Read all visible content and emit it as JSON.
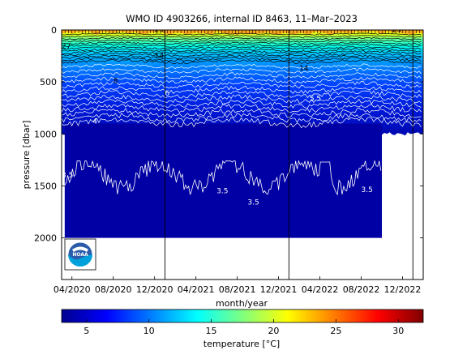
{
  "chart_data": {
    "type": "heatmap",
    "title": "WMO ID 4903266, internal ID 8463, 11–Mar–2023",
    "xlabel": "month/year",
    "ylabel": "pressure [dbar]",
    "x_tick_labels": [
      "04/2020",
      "08/2020",
      "12/2020",
      "04/2021",
      "08/2021",
      "12/2021",
      "04/2022",
      "08/2022",
      "12/2022"
    ],
    "x_range": [
      "2020-03",
      "2023-02"
    ],
    "y_ticks": [
      0,
      500,
      1000,
      1500,
      2000
    ],
    "y_range": [
      0,
      2400
    ],
    "y_reversed": true,
    "year_boundaries": [
      "2021-01",
      "2022-01",
      "2023-01"
    ],
    "colorbar": {
      "label": "temperature [°C]",
      "range": [
        3,
        32
      ],
      "ticks": [
        5,
        10,
        15,
        20,
        25,
        30
      ]
    },
    "contour_labels": [
      {
        "text": "29",
        "x": "2020-12",
        "y": 20
      },
      {
        "text": "29",
        "x": "2022-11",
        "y": 20
      },
      {
        "text": "27",
        "x": "2020-03",
        "y": 180
      },
      {
        "text": "14",
        "x": "2020-12",
        "y": 270
      },
      {
        "text": "14",
        "x": "2022-02",
        "y": 390
      },
      {
        "text": "8",
        "x": "2020-08",
        "y": 510
      },
      {
        "text": "6",
        "x": "2021-01",
        "y": 630
      },
      {
        "text": "5.5",
        "x": "2022-03",
        "y": 680
      },
      {
        "text": "4",
        "x": "2020-06",
        "y": 900
      },
      {
        "text": "3.5",
        "x": "2020-03",
        "y": 1420
      },
      {
        "text": "3.5",
        "x": "2021-06",
        "y": 1570
      },
      {
        "text": "3.5",
        "x": "2021-09",
        "y": 1680
      },
      {
        "text": "3.5",
        "x": "2022-08",
        "y": 1560
      }
    ],
    "logo": {
      "text": "NOAA"
    },
    "grid": false
  }
}
